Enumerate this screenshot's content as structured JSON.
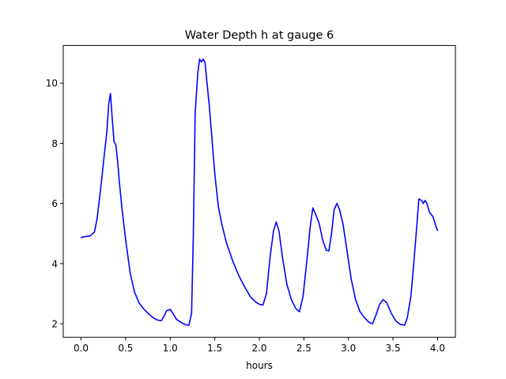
{
  "chart_data": {
    "type": "line",
    "title": "Water Depth h at gauge 6",
    "xlabel": "hours",
    "ylabel": "",
    "xlim": [
      -0.2,
      4.2
    ],
    "ylim": [
      1.55,
      11.25
    ],
    "grid": false,
    "x_ticks": [
      0.0,
      0.5,
      1.0,
      1.5,
      2.0,
      2.5,
      3.0,
      3.5,
      4.0
    ],
    "x_tick_labels": [
      "0.0",
      "0.5",
      "1.0",
      "1.5",
      "2.0",
      "2.5",
      "3.0",
      "3.5",
      "4.0"
    ],
    "y_ticks": [
      2,
      4,
      6,
      8,
      10
    ],
    "y_tick_labels": [
      "2",
      "4",
      "6",
      "8",
      "10"
    ],
    "series": [
      {
        "color": "#0000ff",
        "points": [
          [
            0.0,
            4.87
          ],
          [
            0.05,
            4.9
          ],
          [
            0.1,
            4.92
          ],
          [
            0.15,
            5.05
          ],
          [
            0.18,
            5.5
          ],
          [
            0.22,
            6.5
          ],
          [
            0.26,
            7.6
          ],
          [
            0.29,
            8.4
          ],
          [
            0.31,
            9.3
          ],
          [
            0.33,
            9.65
          ],
          [
            0.35,
            8.8
          ],
          [
            0.37,
            8.05
          ],
          [
            0.39,
            7.95
          ],
          [
            0.41,
            7.4
          ],
          [
            0.43,
            6.7
          ],
          [
            0.46,
            5.8
          ],
          [
            0.5,
            4.8
          ],
          [
            0.55,
            3.7
          ],
          [
            0.6,
            3.05
          ],
          [
            0.65,
            2.7
          ],
          [
            0.7,
            2.5
          ],
          [
            0.75,
            2.35
          ],
          [
            0.8,
            2.22
          ],
          [
            0.85,
            2.13
          ],
          [
            0.9,
            2.1
          ],
          [
            0.93,
            2.25
          ],
          [
            0.96,
            2.43
          ],
          [
            1.0,
            2.48
          ],
          [
            1.03,
            2.35
          ],
          [
            1.07,
            2.15
          ],
          [
            1.12,
            2.05
          ],
          [
            1.17,
            1.97
          ],
          [
            1.21,
            1.95
          ],
          [
            1.24,
            2.35
          ],
          [
            1.26,
            5.0
          ],
          [
            1.28,
            9.0
          ],
          [
            1.31,
            10.35
          ],
          [
            1.33,
            10.8
          ],
          [
            1.35,
            10.7
          ],
          [
            1.37,
            10.8
          ],
          [
            1.39,
            10.7
          ],
          [
            1.41,
            10.1
          ],
          [
            1.44,
            9.2
          ],
          [
            1.47,
            8.1
          ],
          [
            1.5,
            7.0
          ],
          [
            1.54,
            5.9
          ],
          [
            1.58,
            5.3
          ],
          [
            1.63,
            4.7
          ],
          [
            1.7,
            4.1
          ],
          [
            1.77,
            3.6
          ],
          [
            1.84,
            3.2
          ],
          [
            1.9,
            2.9
          ],
          [
            1.96,
            2.72
          ],
          [
            2.0,
            2.65
          ],
          [
            2.04,
            2.62
          ],
          [
            2.08,
            3.0
          ],
          [
            2.12,
            4.2
          ],
          [
            2.16,
            5.1
          ],
          [
            2.19,
            5.38
          ],
          [
            2.22,
            5.1
          ],
          [
            2.26,
            4.2
          ],
          [
            2.31,
            3.3
          ],
          [
            2.36,
            2.8
          ],
          [
            2.41,
            2.5
          ],
          [
            2.45,
            2.4
          ],
          [
            2.49,
            2.9
          ],
          [
            2.53,
            4.0
          ],
          [
            2.57,
            5.2
          ],
          [
            2.6,
            5.85
          ],
          [
            2.63,
            5.65
          ],
          [
            2.67,
            5.35
          ],
          [
            2.71,
            4.8
          ],
          [
            2.75,
            4.45
          ],
          [
            2.78,
            4.42
          ],
          [
            2.81,
            5.0
          ],
          [
            2.84,
            5.8
          ],
          [
            2.87,
            6.0
          ],
          [
            2.9,
            5.8
          ],
          [
            2.94,
            5.3
          ],
          [
            2.98,
            4.5
          ],
          [
            3.03,
            3.5
          ],
          [
            3.08,
            2.8
          ],
          [
            3.13,
            2.4
          ],
          [
            3.18,
            2.2
          ],
          [
            3.23,
            2.05
          ],
          [
            3.27,
            2.0
          ],
          [
            3.31,
            2.3
          ],
          [
            3.35,
            2.65
          ],
          [
            3.39,
            2.8
          ],
          [
            3.43,
            2.7
          ],
          [
            3.48,
            2.35
          ],
          [
            3.53,
            2.1
          ],
          [
            3.58,
            1.98
          ],
          [
            3.63,
            1.95
          ],
          [
            3.66,
            2.2
          ],
          [
            3.7,
            2.9
          ],
          [
            3.73,
            3.9
          ],
          [
            3.76,
            5.0
          ],
          [
            3.79,
            6.15
          ],
          [
            3.82,
            6.1
          ],
          [
            3.84,
            6.0
          ],
          [
            3.86,
            6.1
          ],
          [
            3.88,
            6.0
          ],
          [
            3.91,
            5.7
          ],
          [
            3.95,
            5.55
          ],
          [
            3.98,
            5.25
          ],
          [
            4.0,
            5.1
          ]
        ]
      }
    ]
  }
}
